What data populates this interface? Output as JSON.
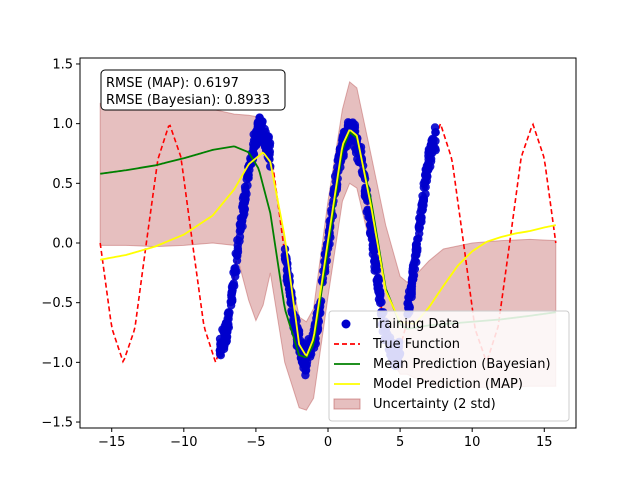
{
  "chart_data": {
    "type": "line",
    "title": "",
    "xlabel": "",
    "ylabel": "",
    "xlim": [
      -17.2,
      17.2
    ],
    "ylim": [
      -1.55,
      1.55
    ],
    "x_ticks": [
      -15,
      -10,
      -5,
      0,
      5,
      10,
      15
    ],
    "y_ticks": [
      -1.5,
      -1.0,
      -0.5,
      0.0,
      0.5,
      1.0,
      1.5
    ],
    "x_tick_labels": [
      "−15",
      "−10",
      "−5",
      "0",
      "5",
      "10",
      "15"
    ],
    "y_tick_labels": [
      "−1.5",
      "−1.0",
      "−0.5",
      "0.0",
      "0.5",
      "1.0",
      "1.5"
    ],
    "grid": false,
    "legend_position": "lower-right",
    "annotation": [
      "RMSE (MAP): 0.6197",
      "RMSE (Bayesian): 0.8933"
    ],
    "colors": {
      "training": "#0000cc",
      "true_function": "#ff0000",
      "bayesian": "#008000",
      "map": "#ffff00",
      "uncertainty": "#c06060"
    },
    "series": [
      {
        "name": "True Function",
        "style": "dashed",
        "x": [
          -15.8,
          -15.0,
          -14.2,
          -13.4,
          -12.6,
          -11.8,
          -11.0,
          -10.2,
          -9.4,
          -8.6,
          -7.8,
          -7.0,
          -6.2,
          -5.4,
          -4.7,
          -3.9,
          -3.1,
          -2.3,
          -1.6,
          -0.8,
          0.0,
          0.8,
          1.6,
          2.3,
          3.1,
          3.9,
          4.7,
          5.4,
          6.2,
          7.0,
          7.8,
          8.6,
          9.4,
          10.2,
          11.0,
          11.8,
          12.6,
          13.4,
          14.2,
          15.0,
          15.8
        ],
        "y": [
          0.0,
          -0.71,
          -1.0,
          -0.72,
          0.0,
          0.7,
          1.0,
          0.72,
          0.0,
          -0.7,
          -1.0,
          -0.72,
          0.0,
          0.7,
          1.0,
          0.72,
          0.0,
          -0.7,
          -1.0,
          -0.72,
          0.0,
          0.72,
          1.0,
          0.7,
          0.0,
          -0.72,
          -1.0,
          -0.7,
          0.0,
          0.72,
          1.0,
          0.7,
          0.0,
          -0.72,
          -1.0,
          -0.7,
          0.0,
          0.72,
          1.0,
          0.71,
          0.0
        ]
      },
      {
        "name": "Mean Prediction (Bayesian)",
        "style": "solid",
        "x": [
          -15.8,
          -14.0,
          -12.0,
          -10.0,
          -8.0,
          -6.5,
          -5.5,
          -4.8,
          -4.0,
          -3.0,
          -2.0,
          -1.5,
          -1.0,
          0.0,
          1.0,
          1.5,
          2.0,
          3.0,
          4.0,
          5.0,
          5.5,
          6.0,
          7.0,
          8.0,
          10.0,
          12.0,
          14.0,
          15.8
        ],
        "y": [
          0.58,
          0.61,
          0.65,
          0.71,
          0.78,
          0.81,
          0.76,
          0.62,
          0.25,
          -0.55,
          -0.94,
          -0.96,
          -0.85,
          -0.05,
          0.78,
          0.93,
          0.88,
          0.35,
          -0.38,
          -0.68,
          -0.72,
          -0.71,
          -0.69,
          -0.68,
          -0.66,
          -0.64,
          -0.61,
          -0.58
        ]
      },
      {
        "name": "Model Prediction (MAP)",
        "style": "solid",
        "x": [
          -15.8,
          -14.0,
          -12.0,
          -10.0,
          -8.0,
          -6.5,
          -5.5,
          -4.5,
          -4.0,
          -3.0,
          -2.0,
          -1.5,
          -1.0,
          0.0,
          1.0,
          1.5,
          2.0,
          3.0,
          4.0,
          5.0,
          6.0,
          7.0,
          8.0,
          9.0,
          10.0,
          11.0,
          12.0,
          13.0,
          14.0,
          15.0,
          15.8
        ],
        "y": [
          -0.14,
          -0.1,
          -0.03,
          0.07,
          0.23,
          0.45,
          0.66,
          0.76,
          0.68,
          0.05,
          -0.85,
          -0.95,
          -0.8,
          0.02,
          0.82,
          0.95,
          0.9,
          0.3,
          -0.4,
          -0.66,
          -0.68,
          -0.54,
          -0.36,
          -0.19,
          -0.07,
          0.01,
          0.05,
          0.08,
          0.1,
          0.13,
          0.15
        ]
      }
    ],
    "uncertainty": {
      "name": "Uncertainty (2 std)",
      "x": [
        -15.8,
        -14.0,
        -12.0,
        -10.0,
        -8.0,
        -6.5,
        -5.5,
        -5.0,
        -4.5,
        -4.0,
        -3.0,
        -2.0,
        -1.5,
        -1.0,
        0.0,
        1.0,
        1.5,
        2.0,
        3.0,
        4.0,
        5.0,
        5.5,
        6.0,
        7.0,
        8.0,
        10.0,
        12.0,
        14.0,
        15.8
      ],
      "upper": [
        1.17,
        1.17,
        1.17,
        1.16,
        1.12,
        1.08,
        1.07,
        1.06,
        1.0,
        0.75,
        0.0,
        -0.62,
        -0.66,
        -0.55,
        0.35,
        1.12,
        1.35,
        1.3,
        0.73,
        0.15,
        -0.28,
        -0.33,
        -0.28,
        -0.15,
        -0.05,
        0.0,
        0.02,
        0.03,
        0.02
      ],
      "lower": [
        -0.02,
        -0.02,
        -0.03,
        -0.02,
        0.0,
        -0.02,
        -0.48,
        -0.65,
        -0.52,
        -0.25,
        -1.0,
        -1.38,
        -1.4,
        -1.3,
        -0.45,
        0.35,
        0.5,
        0.46,
        -0.05,
        -0.88,
        -1.1,
        -1.1,
        -1.13,
        -1.18,
        -1.2,
        -1.21,
        -1.21,
        -1.2,
        -1.2
      ]
    },
    "training": {
      "name": "Training Data",
      "ranges": [
        [
          -7.5,
          -4.0
        ],
        [
          -3.0,
          5.0
        ],
        [
          5.5,
          7.5
        ]
      ],
      "noise": 0.08
    },
    "legend": [
      {
        "label": "Training Data",
        "kind": "marker",
        "color": "#0000cc"
      },
      {
        "label": "True Function",
        "kind": "dashed",
        "color": "#ff0000"
      },
      {
        "label": "Mean Prediction (Bayesian)",
        "kind": "line",
        "color": "#008000"
      },
      {
        "label": "Model Prediction (MAP)",
        "kind": "line",
        "color": "#ffff00"
      },
      {
        "label": "Uncertainty (2 std)",
        "kind": "patch",
        "color": "#c06060"
      }
    ]
  }
}
